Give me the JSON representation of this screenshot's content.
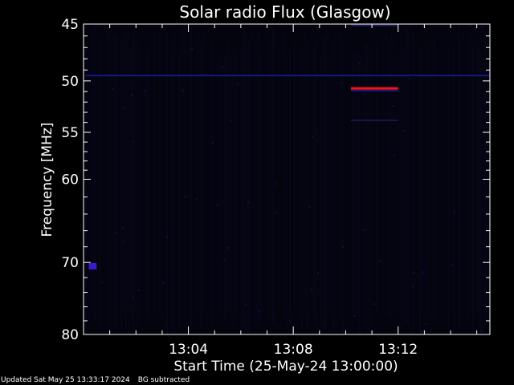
{
  "chart_data": {
    "type": "heatmap",
    "title": "Solar radio Flux (Glasgow)",
    "xlabel": "Start Time (25-May-24 13:00:00)",
    "ylabel": "Frequency [MHz]",
    "x_unit": "minutes after 13:00",
    "xlim": [
      0,
      15.5
    ],
    "ylim": [
      80,
      45
    ],
    "y_scale": "log",
    "x_ticks": [
      {
        "value": 4,
        "label": "13:04"
      },
      {
        "value": 8,
        "label": "13:08"
      },
      {
        "value": 12,
        "label": "13:12"
      }
    ],
    "y_ticks": [
      {
        "value": 45,
        "label": "45"
      },
      {
        "value": 50,
        "label": "50"
      },
      {
        "value": 55,
        "label": "55"
      },
      {
        "value": 60,
        "label": "60"
      },
      {
        "value": 70,
        "label": "70"
      },
      {
        "value": 80,
        "label": "80"
      }
    ],
    "y_minor_ticks": [
      46,
      47,
      48,
      49,
      51,
      52,
      53,
      54,
      56,
      57,
      58,
      59,
      62,
      64,
      66,
      68,
      72,
      74,
      76,
      78
    ],
    "features": [
      {
        "name": "",
        "x_start": 10.2,
        "x_end": 12.0,
        "freq": 50.7,
        "color": "#ff1010",
        "kind": "burst"
      },
      {
        "name": "",
        "x_start": 0.1,
        "x_end": 15.5,
        "freq": 49.5,
        "color": "#1a1a9a",
        "kind": "band"
      },
      {
        "name": "",
        "x_start": 10.2,
        "x_end": 12.0,
        "freq": 45.1,
        "color": "#22226a",
        "kind": "band"
      },
      {
        "name": "",
        "x_start": 10.2,
        "x_end": 12.0,
        "freq": 53.8,
        "color": "#1a1a55",
        "kind": "band"
      },
      {
        "name": "",
        "x_start": 0.2,
        "x_end": 0.5,
        "freq": 70.5,
        "color": "#3a1acc",
        "kind": "spot"
      }
    ],
    "grid": false,
    "legend": "none",
    "colors": {
      "background": "#000000",
      "plot_bg": "#04040e",
      "axes": "#ffffff",
      "noise": "#0c0c30"
    }
  },
  "footer": {
    "updated": "Updated Sat May 25 13:33:17 2024",
    "note": "BG subtracted"
  }
}
